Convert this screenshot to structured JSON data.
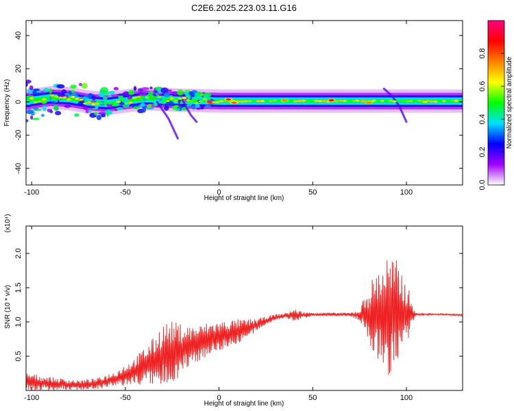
{
  "chart_data": [
    {
      "type": "heatmap",
      "title": "C2E6.2025.223.03.11.G16",
      "xlabel": "Height of straight line (km)",
      "ylabel": "Frequency (Hz)",
      "xlim": [
        -103,
        130
      ],
      "ylim": [
        -50,
        49
      ],
      "x_ticks": [
        -100,
        -50,
        0,
        50,
        100
      ],
      "y_ticks": [
        -40,
        -20,
        0,
        20,
        40
      ],
      "colorbar": {
        "label": "Normalized spectral amplitude",
        "range": [
          0,
          1
        ],
        "ticks": [
          "0.0",
          "0.2",
          "0.4",
          "0.6",
          "0.8"
        ],
        "tick_values": [
          0,
          0.2,
          0.4,
          0.6,
          0.8
        ],
        "colors": [
          "#ffffff",
          "#a000ff",
          "#0000ff",
          "#00e0ff",
          "#00ff00",
          "#ffff00",
          "#ff8000",
          "#ff0000",
          "#ff0080"
        ]
      },
      "ridge": [
        {
          "x": -100,
          "f": 1.0
        },
        {
          "x": -90,
          "f": 2.5
        },
        {
          "x": -80,
          "f": 2.0
        },
        {
          "x": -70,
          "f": 0.0
        },
        {
          "x": -60,
          "f": -1.0
        },
        {
          "x": -50,
          "f": 0.5
        },
        {
          "x": -40,
          "f": 2.0
        },
        {
          "x": -30,
          "f": 1.5
        },
        {
          "x": -20,
          "f": 1.0
        },
        {
          "x": 0,
          "f": 0.5
        },
        {
          "x": 50,
          "f": 0.5
        },
        {
          "x": 100,
          "f": 0.5
        },
        {
          "x": 130,
          "f": 0.5
        }
      ],
      "peaks": [
        {
          "x": -5,
          "f": 0.0,
          "amp": 0.95
        },
        {
          "x": 5,
          "f": 1.5,
          "amp": 0.85
        },
        {
          "x": 8,
          "f": -0.5,
          "amp": 0.8
        },
        {
          "x": 35,
          "f": 1.0,
          "amp": 0.75
        },
        {
          "x": 60,
          "f": 1.0,
          "amp": 0.9
        },
        {
          "x": 77,
          "f": 0.5,
          "amp": 0.7
        },
        {
          "x": 80,
          "f": -0.5,
          "amp": 0.75
        },
        {
          "x": 110,
          "f": 0.0,
          "amp": 0.65
        }
      ]
    },
    {
      "type": "line",
      "xlabel": "Height of straight line (km)",
      "ylabel": "SNR (10 * v/v)",
      "y_multiplier": "(x10⁴)",
      "xlim": [
        -103,
        130
      ],
      "ylim": [
        0,
        24000
      ],
      "x_ticks": [
        -100,
        -50,
        0,
        50,
        100
      ],
      "y_ticks": [
        5000,
        10000,
        15000,
        20000
      ],
      "y_tick_labels": [
        "0.5",
        "1.0",
        "1.5",
        "2.0"
      ],
      "color": "#ee2222",
      "series": [
        {
          "x": [
            -103,
            -95,
            -85,
            -75,
            -65,
            -55,
            -45,
            -35,
            -30,
            -25,
            -20,
            -15,
            -10,
            -5,
            0,
            5,
            10,
            15,
            20,
            25,
            30,
            35,
            40,
            45,
            50,
            55,
            60,
            65,
            70,
            75,
            80,
            85,
            90,
            95,
            100,
            105,
            110,
            120,
            130
          ],
          "mean": [
            1300,
            1100,
            900,
            800,
            1000,
            1700,
            2800,
            4200,
            5000,
            5600,
            6000,
            6500,
            7000,
            7600,
            7900,
            8300,
            8600,
            9000,
            9500,
            10200,
            10700,
            10900,
            11000,
            11000,
            11100,
            11100,
            11100,
            11100,
            11100,
            11000,
            11000,
            11000,
            11000,
            11000,
            11000,
            11100,
            11100,
            11100,
            11000
          ],
          "spread": [
            1300,
            1100,
            900,
            700,
            800,
            1200,
            2000,
            3500,
            5000,
            4500,
            3800,
            3000,
            2600,
            2400,
            2200,
            2000,
            1800,
            1400,
            1000,
            600,
            450,
            400,
            900,
            500,
            250,
            250,
            250,
            250,
            250,
            800,
            4500,
            7000,
            9000,
            8000,
            5000,
            150,
            150,
            120,
            120
          ]
        }
      ]
    }
  ]
}
